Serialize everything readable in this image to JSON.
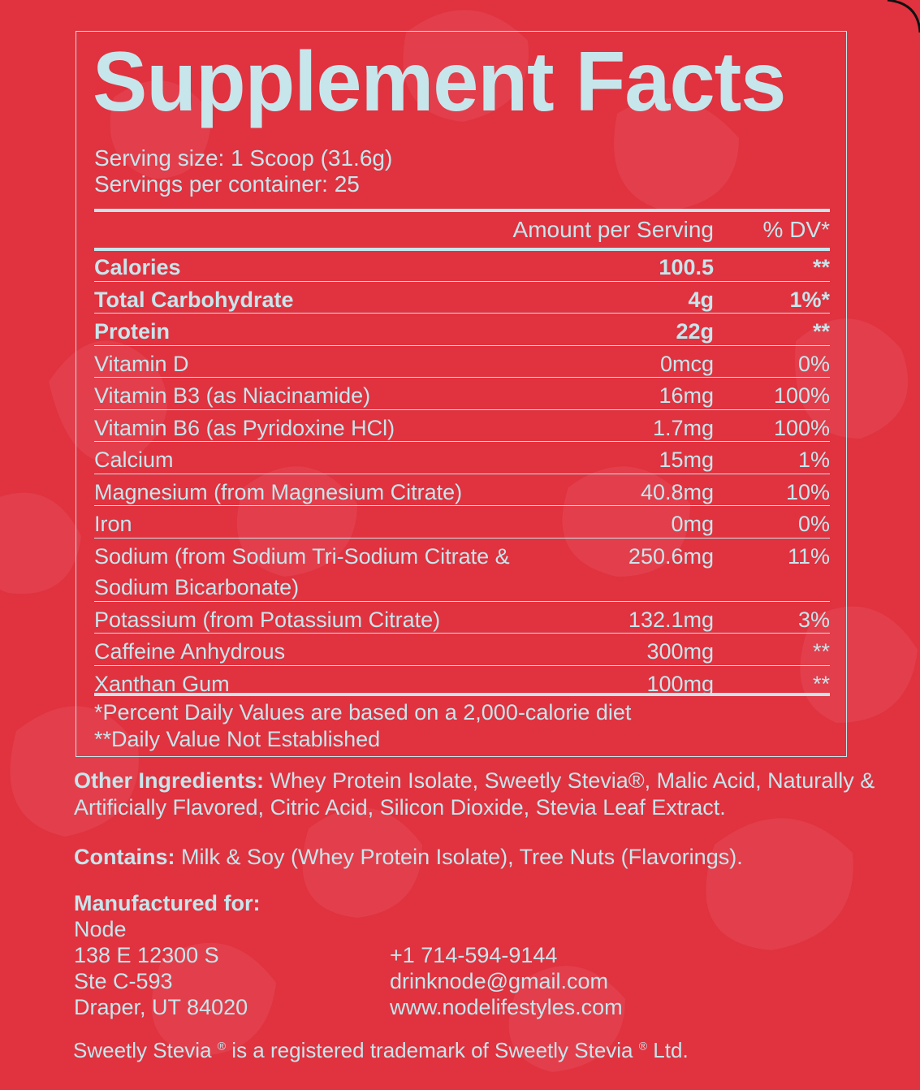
{
  "title": "Supplement Facts",
  "serving_size": "Serving size: 1 Scoop (31.6g)",
  "servings_per_container": "Servings per container: 25",
  "header": {
    "amount": "Amount per Serving",
    "dv": "% DV*"
  },
  "rows": [
    {
      "name": "Calories",
      "amount": "100.5",
      "dv": "**",
      "bold": true
    },
    {
      "name": "Total Carbohydrate",
      "amount": "4g",
      "dv": "1%*",
      "bold": true
    },
    {
      "name": "Protein",
      "amount": "22g",
      "dv": "**",
      "bold": true
    },
    {
      "name": "Vitamin D",
      "amount": "0mcg",
      "dv": "0%"
    },
    {
      "name": "Vitamin B3 (as Niacinamide)",
      "amount": "16mg",
      "dv": "100%"
    },
    {
      "name": "Vitamin B6 (as Pyridoxine HCl)",
      "amount": "1.7mg",
      "dv": "100%"
    },
    {
      "name": "Calcium",
      "amount": "15mg",
      "dv": "1%"
    },
    {
      "name": "Magnesium (from Magnesium Citrate)",
      "amount": "40.8mg",
      "dv": "10%"
    },
    {
      "name": "Iron",
      "amount": "0mg",
      "dv": "0%"
    },
    {
      "name": "Sodium (from Sodium Tri-Sodium Citrate & Sodium Bicarbonate)",
      "amount": "250.6mg",
      "dv": "11%",
      "tall": true
    },
    {
      "name": "Potassium (from Potassium Citrate)",
      "amount": "132.1mg",
      "dv": "3%"
    },
    {
      "name": "Caffeine Anhydrous",
      "amount": "300mg",
      "dv": "**"
    },
    {
      "name": "Xanthan Gum",
      "amount": "100mg",
      "dv": "**"
    }
  ],
  "footnote_1": "*Percent Daily Values are based on a 2,000-calorie diet",
  "footnote_2": "**Daily Value Not Established",
  "other_ingredients": {
    "label": "Other Ingredients:",
    "line1": " Whey Protein Isolate, Sweetly Stevia®, Malic Acid, Naturally &",
    "line2": "Artificially Flavored, Citric Acid, Silicon Dioxide, Stevia Leaf Extract."
  },
  "contains": {
    "label": "Contains:",
    "text": " Milk & Soy (Whey Protein Isolate), Tree Nuts (Flavorings)."
  },
  "manufacturer": {
    "label": "Manufactured for:",
    "name": "Node",
    "street": "138 E 12300 S",
    "suite": "Ste C-593",
    "city": "Draper, UT 84020",
    "phone": "+1 714-594-9144",
    "email": "drinknode@gmail.com",
    "website": "www.nodelifestyles.com"
  },
  "trademark": {
    "a": "Sweetly Stevia ",
    "b": " is a registered trademark of Sweetly Stevia ",
    "c": " Ltd.",
    "reg": "®"
  },
  "colors": {
    "background": "#e0323f",
    "text": "#c6e6ec",
    "flower": "#e8525d"
  }
}
